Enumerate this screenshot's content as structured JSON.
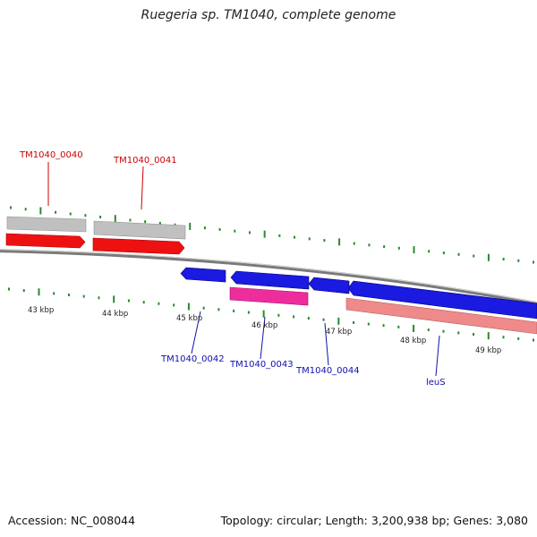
{
  "title": "Ruegeria sp. TM1040, complete genome",
  "footer": {
    "accession": "Accession: NC_008044",
    "summary": "Topology: circular; Length: 3,200,938 bp; Genes: 3,080"
  },
  "colors": {
    "forward_cds": "#ee1111",
    "forward_gene": "#c0c0c0",
    "reverse_cds": "#1a1ae0",
    "reverse_pink": "#ee2d9d",
    "reverse_salmon": "#ef8a8a",
    "backbone": "#7a7a7a",
    "ticks": "#2a8a2a",
    "forward_label": "#cc0000",
    "reverse_label": "#1010b0"
  },
  "kbp_labels": [
    "43 kbp",
    "44 kbp",
    "45 kbp",
    "46 kbp",
    "47 kbp",
    "48 kbp",
    "49 kbp"
  ],
  "forward_labels": [
    "TM1040_0040",
    "TM1040_0041"
  ],
  "reverse_labels": [
    "TM1040_0042",
    "TM1040_0043",
    "TM1040_0044",
    "leuS"
  ]
}
